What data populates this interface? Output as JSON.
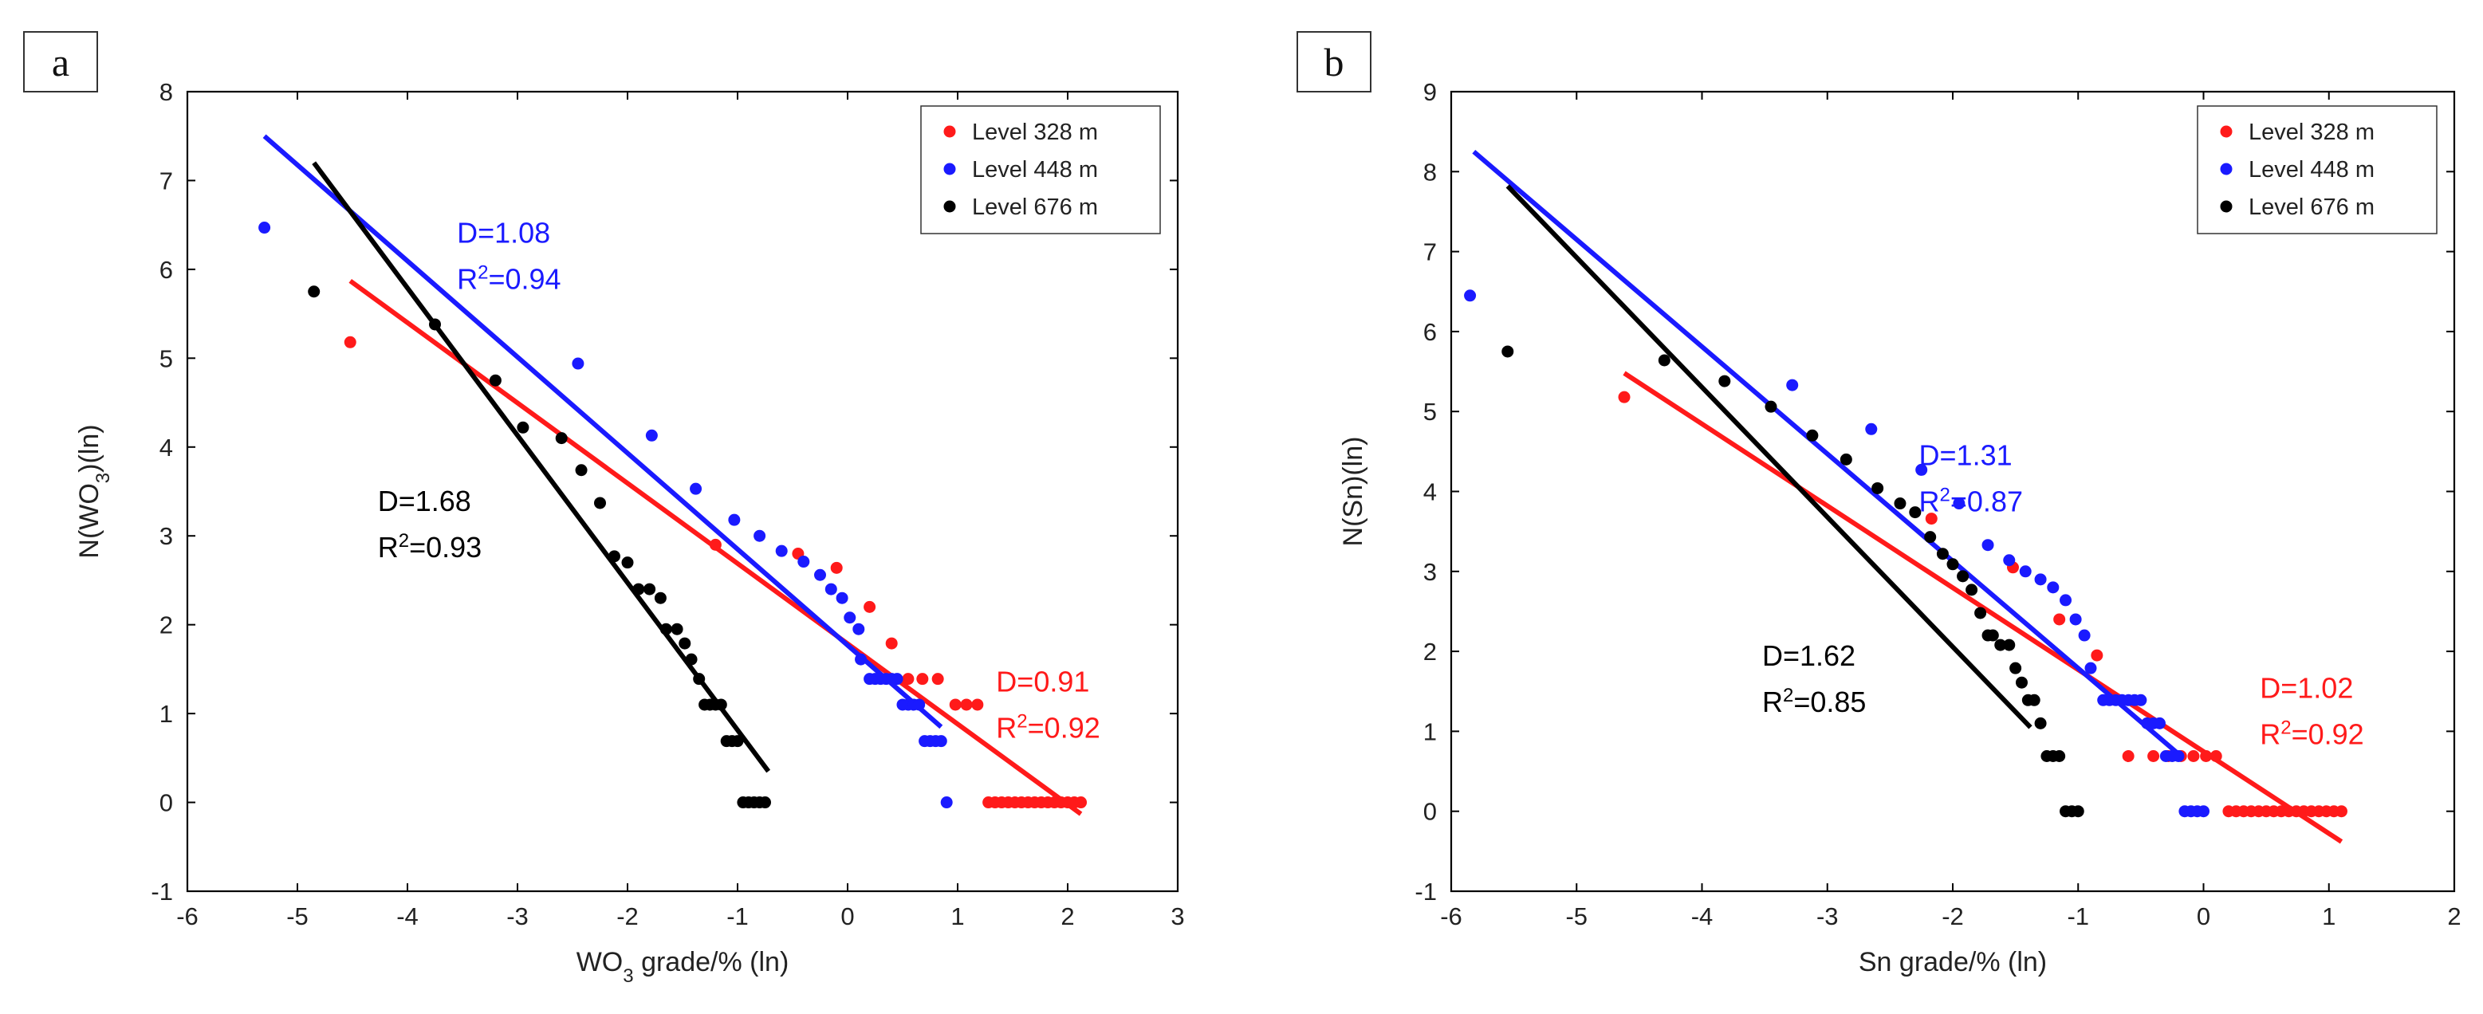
{
  "chart_data": [
    {
      "panel_label": "a",
      "type": "scatter",
      "xlabel": {
        "pre": "WO",
        "sub": "3",
        "post": " grade/% (ln)"
      },
      "ylabel": {
        "pre": "N(WO",
        "sub": "3",
        "post": ")(ln)"
      },
      "xlim": [
        -6,
        3
      ],
      "ylim": [
        -1,
        8
      ],
      "xticks": [
        -6,
        -5,
        -4,
        -3,
        -2,
        -1,
        0,
        1,
        2,
        3
      ],
      "yticks": [
        -1,
        0,
        1,
        2,
        3,
        4,
        5,
        6,
        7,
        8
      ],
      "legend_position": "top-right",
      "series": [
        {
          "name": "Level 328 m",
          "color": "#ff1a1a",
          "points": [
            [
              -4.52,
              5.18
            ],
            [
              -1.2,
              2.9
            ],
            [
              -0.45,
              2.8
            ],
            [
              -0.1,
              2.64
            ],
            [
              0.2,
              2.2
            ],
            [
              0.4,
              1.79
            ],
            [
              0.55,
              1.39
            ],
            [
              0.68,
              1.39
            ],
            [
              0.82,
              1.39
            ],
            [
              0.98,
              1.1
            ],
            [
              1.08,
              1.1
            ],
            [
              1.18,
              1.1
            ],
            [
              1.28,
              0
            ],
            [
              1.34,
              0
            ],
            [
              1.4,
              0
            ],
            [
              1.46,
              0
            ],
            [
              1.52,
              0
            ],
            [
              1.58,
              0
            ],
            [
              1.64,
              0
            ],
            [
              1.7,
              0
            ],
            [
              1.76,
              0
            ],
            [
              1.82,
              0
            ],
            [
              1.88,
              0
            ],
            [
              1.94,
              0
            ],
            [
              2.0,
              0
            ],
            [
              2.06,
              0
            ],
            [
              2.12,
              0
            ]
          ],
          "fit": [
            [
              -4.52,
              5.87
            ],
            [
              2.12,
              -0.13
            ]
          ],
          "annotation": {
            "D": "D=0.91",
            "R2": "0.92",
            "at": [
              1.35,
              1.25
            ]
          }
        },
        {
          "name": "Level 448 m",
          "color": "#1a1aff",
          "points": [
            [
              -5.3,
              6.47
            ],
            [
              -2.45,
              4.94
            ],
            [
              -1.78,
              4.13
            ],
            [
              -1.38,
              3.53
            ],
            [
              -1.03,
              3.18
            ],
            [
              -0.8,
              3.0
            ],
            [
              -0.6,
              2.83
            ],
            [
              -0.4,
              2.71
            ],
            [
              -0.25,
              2.56
            ],
            [
              -0.15,
              2.4
            ],
            [
              -0.05,
              2.3
            ],
            [
              0.02,
              2.08
            ],
            [
              0.1,
              1.95
            ],
            [
              0.12,
              1.61
            ],
            [
              0.2,
              1.39
            ],
            [
              0.25,
              1.39
            ],
            [
              0.3,
              1.39
            ],
            [
              0.35,
              1.39
            ],
            [
              0.4,
              1.39
            ],
            [
              0.45,
              1.39
            ],
            [
              0.5,
              1.1
            ],
            [
              0.55,
              1.1
            ],
            [
              0.6,
              1.1
            ],
            [
              0.65,
              1.1
            ],
            [
              0.7,
              0.69
            ],
            [
              0.75,
              0.69
            ],
            [
              0.8,
              0.69
            ],
            [
              0.85,
              0.69
            ],
            [
              0.9,
              0
            ]
          ],
          "fit": [
            [
              -5.3,
              7.5
            ],
            [
              0.85,
              0.85
            ]
          ],
          "annotation": {
            "D": "D=1.08",
            "R2": "0.94",
            "at": [
              -3.55,
              6.3
            ]
          }
        },
        {
          "name": "Level 676 m",
          "color": "#000000",
          "points": [
            [
              -4.85,
              5.75
            ],
            [
              -3.75,
              5.38
            ],
            [
              -3.2,
              4.75
            ],
            [
              -2.95,
              4.22
            ],
            [
              -2.6,
              4.1
            ],
            [
              -2.42,
              3.74
            ],
            [
              -2.25,
              3.37
            ],
            [
              -2.12,
              2.77
            ],
            [
              -2.0,
              2.7
            ],
            [
              -1.9,
              2.4
            ],
            [
              -1.8,
              2.4
            ],
            [
              -1.7,
              2.3
            ],
            [
              -1.65,
              1.95
            ],
            [
              -1.55,
              1.95
            ],
            [
              -1.48,
              1.79
            ],
            [
              -1.42,
              1.61
            ],
            [
              -1.35,
              1.39
            ],
            [
              -1.3,
              1.1
            ],
            [
              -1.25,
              1.1
            ],
            [
              -1.2,
              1.1
            ],
            [
              -1.15,
              1.1
            ],
            [
              -1.1,
              0.69
            ],
            [
              -1.05,
              0.69
            ],
            [
              -1.0,
              0.69
            ],
            [
              -0.95,
              0
            ],
            [
              -0.9,
              0
            ],
            [
              -0.85,
              0
            ],
            [
              -0.8,
              0
            ],
            [
              -0.75,
              0
            ]
          ],
          "fit": [
            [
              -4.85,
              7.2
            ],
            [
              -0.72,
              0.35
            ]
          ],
          "annotation": {
            "D": "D=1.68",
            "R2": "0.93",
            "at": [
              -4.27,
              3.28
            ]
          }
        }
      ]
    },
    {
      "panel_label": "b",
      "type": "scatter",
      "xlabel": {
        "pre": "Sn grade/% (ln)",
        "sub": "",
        "post": ""
      },
      "ylabel": {
        "pre": "N(Sn)(ln)",
        "sub": "",
        "post": ""
      },
      "xlim": [
        -6,
        2
      ],
      "ylim": [
        -1,
        9
      ],
      "xticks": [
        -6,
        -5,
        -4,
        -3,
        -2,
        -1,
        0,
        1,
        2
      ],
      "yticks": [
        -1,
        0,
        1,
        2,
        3,
        4,
        5,
        6,
        7,
        8,
        9
      ],
      "legend_position": "top-right",
      "series": [
        {
          "name": "Level 328 m",
          "color": "#ff1a1a",
          "points": [
            [
              -4.62,
              5.18
            ],
            [
              -2.17,
              3.66
            ],
            [
              -1.52,
              3.05
            ],
            [
              -1.15,
              2.4
            ],
            [
              -0.85,
              1.95
            ],
            [
              -0.6,
              0.69
            ],
            [
              -0.4,
              0.69
            ],
            [
              -0.28,
              0.69
            ],
            [
              -0.18,
              0.69
            ],
            [
              -0.08,
              0.69
            ],
            [
              0.02,
              0.69
            ],
            [
              0.1,
              0.69
            ],
            [
              0.2,
              0
            ],
            [
              0.26,
              0
            ],
            [
              0.32,
              0
            ],
            [
              0.38,
              0
            ],
            [
              0.44,
              0
            ],
            [
              0.5,
              0
            ],
            [
              0.56,
              0
            ],
            [
              0.62,
              0
            ],
            [
              0.68,
              0
            ],
            [
              0.74,
              0
            ],
            [
              0.8,
              0
            ],
            [
              0.86,
              0
            ],
            [
              0.92,
              0
            ],
            [
              0.98,
              0
            ],
            [
              1.04,
              0
            ],
            [
              1.1,
              0
            ]
          ],
          "fit": [
            [
              -4.62,
              5.48
            ],
            [
              1.1,
              -0.38
            ]
          ],
          "annotation": {
            "D": "D=1.02",
            "R2": "0.92",
            "at": [
              0.45,
              1.42
            ]
          }
        },
        {
          "name": "Level 448 m",
          "color": "#1a1aff",
          "points": [
            [
              -5.85,
              6.45
            ],
            [
              -3.28,
              5.33
            ],
            [
              -2.65,
              4.78
            ],
            [
              -2.25,
              4.27
            ],
            [
              -1.95,
              3.85
            ],
            [
              -1.72,
              3.33
            ],
            [
              -1.55,
              3.14
            ],
            [
              -1.42,
              3.0
            ],
            [
              -1.3,
              2.9
            ],
            [
              -1.2,
              2.8
            ],
            [
              -1.1,
              2.64
            ],
            [
              -1.02,
              2.4
            ],
            [
              -0.95,
              2.2
            ],
            [
              -0.9,
              1.79
            ],
            [
              -0.8,
              1.39
            ],
            [
              -0.75,
              1.39
            ],
            [
              -0.7,
              1.39
            ],
            [
              -0.65,
              1.39
            ],
            [
              -0.6,
              1.39
            ],
            [
              -0.55,
              1.39
            ],
            [
              -0.5,
              1.39
            ],
            [
              -0.45,
              1.1
            ],
            [
              -0.4,
              1.1
            ],
            [
              -0.35,
              1.1
            ],
            [
              -0.3,
              0.69
            ],
            [
              -0.25,
              0.69
            ],
            [
              -0.2,
              0.69
            ],
            [
              -0.15,
              0
            ],
            [
              -0.1,
              0
            ],
            [
              -0.05,
              0
            ],
            [
              0.0,
              0
            ]
          ],
          "fit": [
            [
              -5.82,
              8.25
            ],
            [
              -0.15,
              0.65
            ]
          ],
          "annotation": {
            "D": "D=1.31",
            "R2": "0.87",
            "at": [
              -2.27,
              4.33
            ]
          }
        },
        {
          "name": "Level 676 m",
          "color": "#000000",
          "points": [
            [
              -5.55,
              5.75
            ],
            [
              -4.3,
              5.64
            ],
            [
              -3.82,
              5.38
            ],
            [
              -3.45,
              5.06
            ],
            [
              -3.12,
              4.7
            ],
            [
              -2.85,
              4.4
            ],
            [
              -2.6,
              4.04
            ],
            [
              -2.42,
              3.85
            ],
            [
              -2.3,
              3.74
            ],
            [
              -2.18,
              3.43
            ],
            [
              -2.08,
              3.22
            ],
            [
              -2.0,
              3.09
            ],
            [
              -1.92,
              2.94
            ],
            [
              -1.85,
              2.77
            ],
            [
              -1.78,
              2.48
            ],
            [
              -1.72,
              2.2
            ],
            [
              -1.68,
              2.2
            ],
            [
              -1.62,
              2.08
            ],
            [
              -1.55,
              2.08
            ],
            [
              -1.5,
              1.79
            ],
            [
              -1.45,
              1.61
            ],
            [
              -1.4,
              1.39
            ],
            [
              -1.35,
              1.39
            ],
            [
              -1.3,
              1.1
            ],
            [
              -1.25,
              0.69
            ],
            [
              -1.2,
              0.69
            ],
            [
              -1.15,
              0.69
            ],
            [
              -1.1,
              0
            ],
            [
              -1.05,
              0
            ],
            [
              -1.0,
              0
            ]
          ],
          "fit": [
            [
              -5.55,
              7.82
            ],
            [
              -1.38,
              1.05
            ]
          ],
          "annotation": {
            "D": "D=1.62",
            "R2": "0.85",
            "at": [
              -3.52,
              1.82
            ]
          }
        }
      ]
    }
  ]
}
